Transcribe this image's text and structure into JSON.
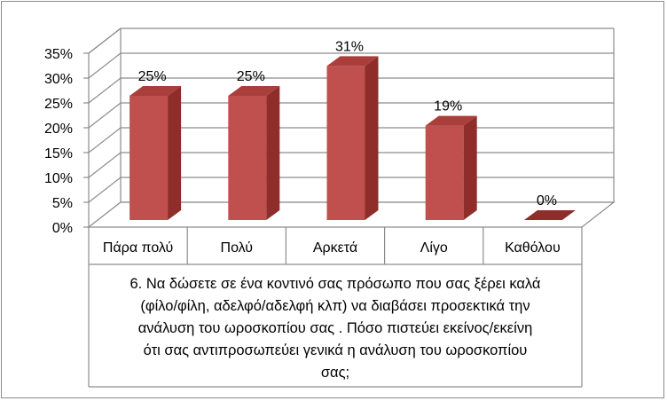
{
  "chart_data": {
    "type": "bar",
    "categories": [
      "Πάρα πολύ",
      "Πολύ",
      "Αρκετά",
      "Λίγο",
      "Καθόλου"
    ],
    "values": [
      25,
      25,
      31,
      19,
      0
    ],
    "data_labels": [
      "25%",
      "25%",
      "31%",
      "19%",
      "0%"
    ],
    "xlabel": "6. Να δώσετε σε ένα κοντινό σας πρόσωπο που σας ξέρει καλά\n(φίλο/φίλη, αδελφό/αδελφή κλπ) να διαβάσει προσεκτικά την\nανάλυση του ωροσκοπίου σας . Πόσο πιστεύει εκείνος/εκείνη\nότι σας αντιπροσωπεύει γενικά  η ανάλυση του ωροσκοπίου\nσας;",
    "y_ticks": [
      "0%",
      "5%",
      "10%",
      "15%",
      "20%",
      "25%",
      "30%",
      "35%"
    ],
    "ylim": [
      0,
      35
    ],
    "grid": true,
    "three_d": true,
    "bar_color": "#c0504d",
    "bar_side_color": "#8e2d2a",
    "bar_top_color": "#a93e3b"
  }
}
